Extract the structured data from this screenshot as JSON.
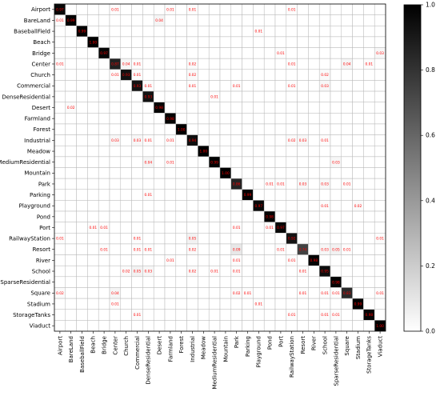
{
  "chart_data": {
    "type": "heatmap",
    "title": "",
    "xlabel": "",
    "ylabel": "",
    "labels": [
      "Airport",
      "BareLand",
      "BaseballField",
      "Beach",
      "Bridge",
      "Center",
      "Church",
      "Commercial",
      "DenseResidential",
      "Desert",
      "Farmland",
      "Forest",
      "Industrial",
      "Meadow",
      "MediumResidential",
      "Mountain",
      "Park",
      "Parking",
      "Playground",
      "Pond",
      "Port",
      "RailwayStation",
      "Resort",
      "River",
      "School",
      "SparseResidential",
      "Square",
      "Stadium",
      "StorageTanks",
      "Viaduct"
    ],
    "diagonal": [
      0.97,
      0.99,
      0.99,
      1.0,
      0.97,
      0.87,
      0.93,
      0.93,
      0.93,
      0.98,
      0.98,
      1.0,
      0.94,
      1.0,
      0.99,
      1.0,
      0.86,
      0.99,
      0.97,
      0.98,
      0.97,
      0.92,
      0.74,
      0.98,
      0.95,
      0.98,
      0.83,
      0.99,
      0.98,
      1.0
    ],
    "off_diagonal": [
      {
        "r": "Airport",
        "c": "Center",
        "v": 0.01
      },
      {
        "r": "Airport",
        "c": "Farmland",
        "v": 0.01
      },
      {
        "r": "Airport",
        "c": "Industrial",
        "v": 0.01
      },
      {
        "r": "Airport",
        "c": "RailwayStation",
        "v": 0.01
      },
      {
        "r": "BareLand",
        "c": "Airport",
        "v": 0.01
      },
      {
        "r": "BareLand",
        "c": "Desert",
        "v": 0.04
      },
      {
        "r": "BaseballField",
        "c": "Playground",
        "v": 0.01
      },
      {
        "r": "Bridge",
        "c": "Port",
        "v": 0.01
      },
      {
        "r": "Bridge",
        "c": "Viaduct",
        "v": 0.03
      },
      {
        "r": "Center",
        "c": "Airport",
        "v": 0.01
      },
      {
        "r": "Center",
        "c": "Church",
        "v": 0.04
      },
      {
        "r": "Center",
        "c": "Commercial",
        "v": 0.01
      },
      {
        "r": "Center",
        "c": "Industrial",
        "v": 0.02
      },
      {
        "r": "Center",
        "c": "RailwayStation",
        "v": 0.01
      },
      {
        "r": "Center",
        "c": "Square",
        "v": 0.04
      },
      {
        "r": "Center",
        "c": "StorageTanks",
        "v": 0.01
      },
      {
        "r": "Church",
        "c": "Center",
        "v": 0.01
      },
      {
        "r": "Church",
        "c": "Commercial",
        "v": 0.01
      },
      {
        "r": "Church",
        "c": "Industrial",
        "v": 0.02
      },
      {
        "r": "Church",
        "c": "School",
        "v": 0.02
      },
      {
        "r": "Commercial",
        "c": "DenseResidential",
        "v": 0.01
      },
      {
        "r": "Commercial",
        "c": "Industrial",
        "v": 0.01
      },
      {
        "r": "Commercial",
        "c": "Park",
        "v": 0.01
      },
      {
        "r": "Commercial",
        "c": "RailwayStation",
        "v": 0.01
      },
      {
        "r": "Commercial",
        "c": "School",
        "v": 0.03
      },
      {
        "r": "DenseResidential",
        "c": "MediumResidential",
        "v": 0.01
      },
      {
        "r": "Desert",
        "c": "BareLand",
        "v": 0.02
      },
      {
        "r": "Industrial",
        "c": "Center",
        "v": 0.03
      },
      {
        "r": "Industrial",
        "c": "Commercial",
        "v": 0.03
      },
      {
        "r": "Industrial",
        "c": "DenseResidential",
        "v": 0.01
      },
      {
        "r": "Industrial",
        "c": "Farmland",
        "v": 0.01
      },
      {
        "r": "Industrial",
        "c": "RailwayStation",
        "v": 0.02
      },
      {
        "r": "Industrial",
        "c": "Resort",
        "v": 0.03
      },
      {
        "r": "Industrial",
        "c": "School",
        "v": 0.01
      },
      {
        "r": "MediumResidential",
        "c": "DenseResidential",
        "v": 0.04
      },
      {
        "r": "MediumResidential",
        "c": "Farmland",
        "v": 0.01
      },
      {
        "r": "MediumResidential",
        "c": "SparseResidential",
        "v": 0.03
      },
      {
        "r": "Park",
        "c": "Pond",
        "v": 0.01
      },
      {
        "r": "Park",
        "c": "Port",
        "v": 0.01
      },
      {
        "r": "Park",
        "c": "Resort",
        "v": 0.03
      },
      {
        "r": "Park",
        "c": "School",
        "v": 0.03
      },
      {
        "r": "Park",
        "c": "Square",
        "v": 0.01
      },
      {
        "r": "Parking",
        "c": "DenseResidential",
        "v": 0.01
      },
      {
        "r": "Playground",
        "c": "School",
        "v": 0.01
      },
      {
        "r": "Playground",
        "c": "Stadium",
        "v": 0.02
      },
      {
        "r": "Port",
        "c": "Beach",
        "v": 0.01
      },
      {
        "r": "Port",
        "c": "Bridge",
        "v": 0.01
      },
      {
        "r": "Port",
        "c": "Park",
        "v": 0.01
      },
      {
        "r": "Port",
        "c": "Pond",
        "v": 0.01
      },
      {
        "r": "RailwayStation",
        "c": "Airport",
        "v": 0.01
      },
      {
        "r": "RailwayStation",
        "c": "Commercial",
        "v": 0.01
      },
      {
        "r": "RailwayStation",
        "c": "Industrial",
        "v": 0.05
      },
      {
        "r": "RailwayStation",
        "c": "Viaduct",
        "v": 0.01
      },
      {
        "r": "Resort",
        "c": "Bridge",
        "v": 0.01
      },
      {
        "r": "Resort",
        "c": "Commercial",
        "v": 0.01
      },
      {
        "r": "Resort",
        "c": "DenseResidential",
        "v": 0.01
      },
      {
        "r": "Resort",
        "c": "Industrial",
        "v": 0.02
      },
      {
        "r": "Resort",
        "c": "Park",
        "v": 0.09
      },
      {
        "r": "Resort",
        "c": "Port",
        "v": 0.01
      },
      {
        "r": "Resort",
        "c": "School",
        "v": 0.03
      },
      {
        "r": "Resort",
        "c": "SparseResidential",
        "v": 0.05
      },
      {
        "r": "Resort",
        "c": "Square",
        "v": 0.01
      },
      {
        "r": "River",
        "c": "Farmland",
        "v": 0.01
      },
      {
        "r": "River",
        "c": "Park",
        "v": 0.01
      },
      {
        "r": "River",
        "c": "RailwayStation",
        "v": 0.01
      },
      {
        "r": "School",
        "c": "Church",
        "v": 0.02
      },
      {
        "r": "School",
        "c": "Commercial",
        "v": 0.05
      },
      {
        "r": "School",
        "c": "DenseResidential",
        "v": 0.03
      },
      {
        "r": "School",
        "c": "Industrial",
        "v": 0.02
      },
      {
        "r": "School",
        "c": "MediumResidential",
        "v": 0.01
      },
      {
        "r": "School",
        "c": "Park",
        "v": 0.01
      },
      {
        "r": "School",
        "c": "Resort",
        "v": 0.01
      },
      {
        "r": "Square",
        "c": "Airport",
        "v": 0.02
      },
      {
        "r": "Square",
        "c": "Center",
        "v": 0.04
      },
      {
        "r": "Square",
        "c": "Park",
        "v": 0.02
      },
      {
        "r": "Square",
        "c": "Parking",
        "v": 0.01
      },
      {
        "r": "Square",
        "c": "Resort",
        "v": 0.01
      },
      {
        "r": "Square",
        "c": "School",
        "v": 0.01
      },
      {
        "r": "Square",
        "c": "SparseResidential",
        "v": 0.01
      },
      {
        "r": "Square",
        "c": "Viaduct",
        "v": 0.01
      },
      {
        "r": "Stadium",
        "c": "Center",
        "v": 0.01
      },
      {
        "r": "Stadium",
        "c": "Playground",
        "v": 0.01
      },
      {
        "r": "StorageTanks",
        "c": "Commercial",
        "v": 0.01
      },
      {
        "r": "StorageTanks",
        "c": "RailwayStation",
        "v": 0.01
      },
      {
        "r": "StorageTanks",
        "c": "School",
        "v": 0.01
      },
      {
        "r": "StorageTanks",
        "c": "SparseResidential",
        "v": 0.01
      }
    ],
    "colorbar": {
      "min": 0.0,
      "max": 1.0,
      "ticks": [
        "0.0",
        "0.2",
        "0.4",
        "0.6",
        "0.8",
        "1.0"
      ],
      "colormap": "white-to-black"
    },
    "grid": true,
    "value_text_color": "#ff0000"
  }
}
